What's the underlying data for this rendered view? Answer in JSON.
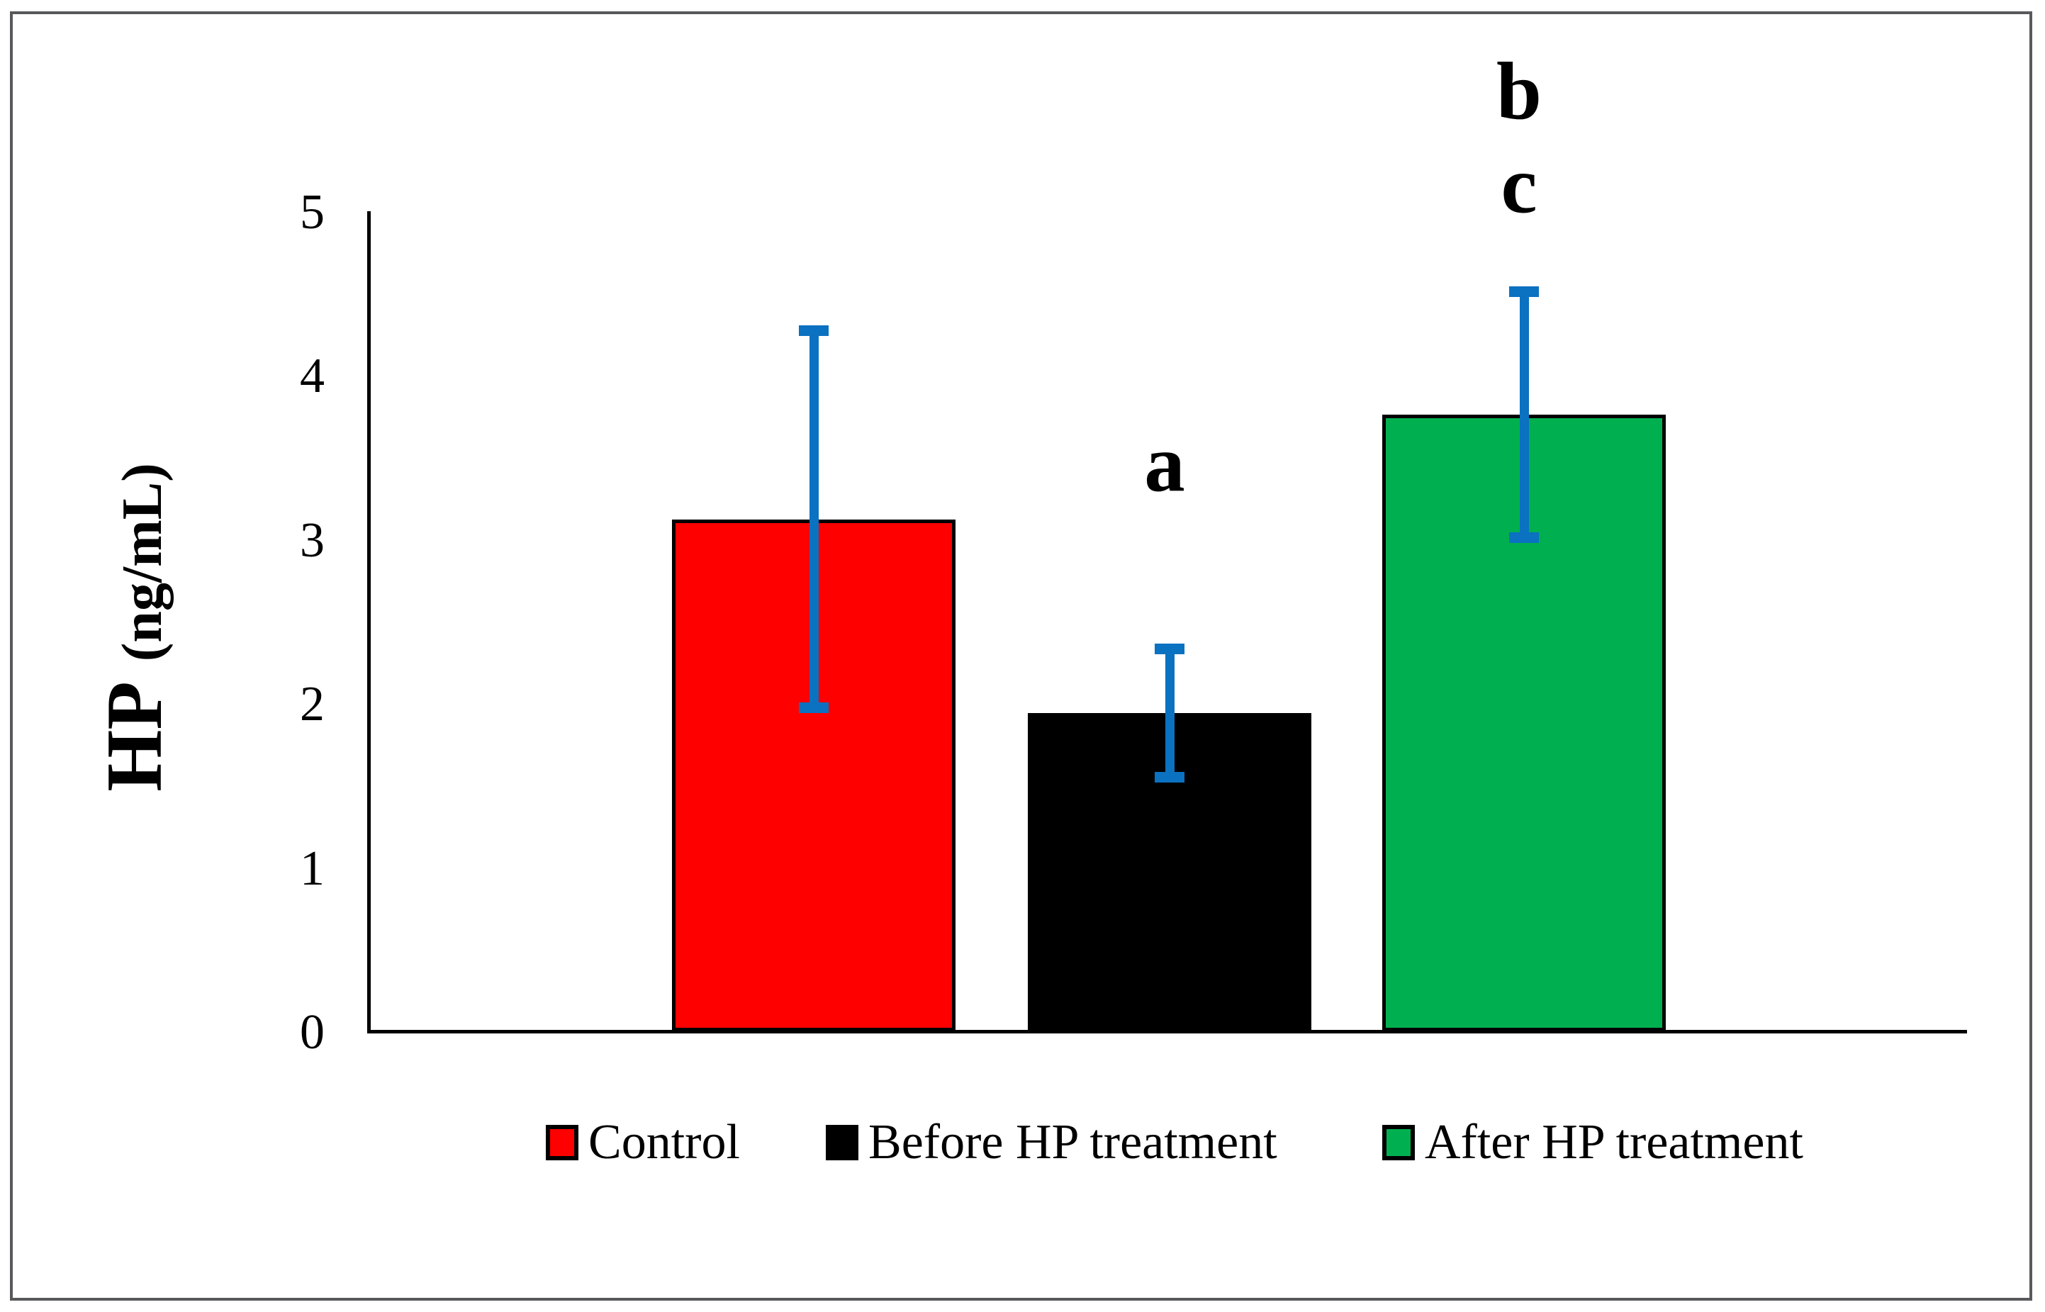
{
  "figure": {
    "border_color": "#58595b",
    "background": "#ffffff"
  },
  "y_axis": {
    "label_main": "HP",
    "label_unit": "(ng/mL)",
    "tick_labels": [
      "0",
      "1",
      "2",
      "3",
      "4",
      "5"
    ]
  },
  "chart_data": {
    "type": "bar",
    "title": "",
    "xlabel": "",
    "ylabel": "HP (ng/mL)",
    "ylim": [
      0,
      5
    ],
    "yticks": [
      0,
      1,
      2,
      3,
      4,
      5
    ],
    "grid": false,
    "legend_position": "bottom-center",
    "error_bar_color": "#0b71c1",
    "categories": [
      "Control",
      "Before HP treatment",
      "After HP treatment"
    ],
    "series": [
      {
        "name": "Control",
        "value": 3.13,
        "error": 1.15,
        "color": "#ff0000"
      },
      {
        "name": "Before HP treatment",
        "value": 1.95,
        "error": 0.39,
        "color": "#000000"
      },
      {
        "name": "After HP treatment",
        "value": 3.77,
        "error": 0.75,
        "color": "#00b050"
      }
    ],
    "annotations": [
      {
        "text": "a",
        "bar_index": 1,
        "y_value": 3.47
      },
      {
        "text": "b",
        "bar_index": 2,
        "y_value": 5.74
      },
      {
        "text": "c",
        "bar_index": 2,
        "y_value": 5.17
      }
    ]
  },
  "legend": {
    "items": [
      {
        "label": "Control",
        "color": "#ff0000"
      },
      {
        "label": "Before HP treatment",
        "color": "#000000"
      },
      {
        "label": "After HP treatment",
        "color": "#00b050"
      }
    ]
  }
}
